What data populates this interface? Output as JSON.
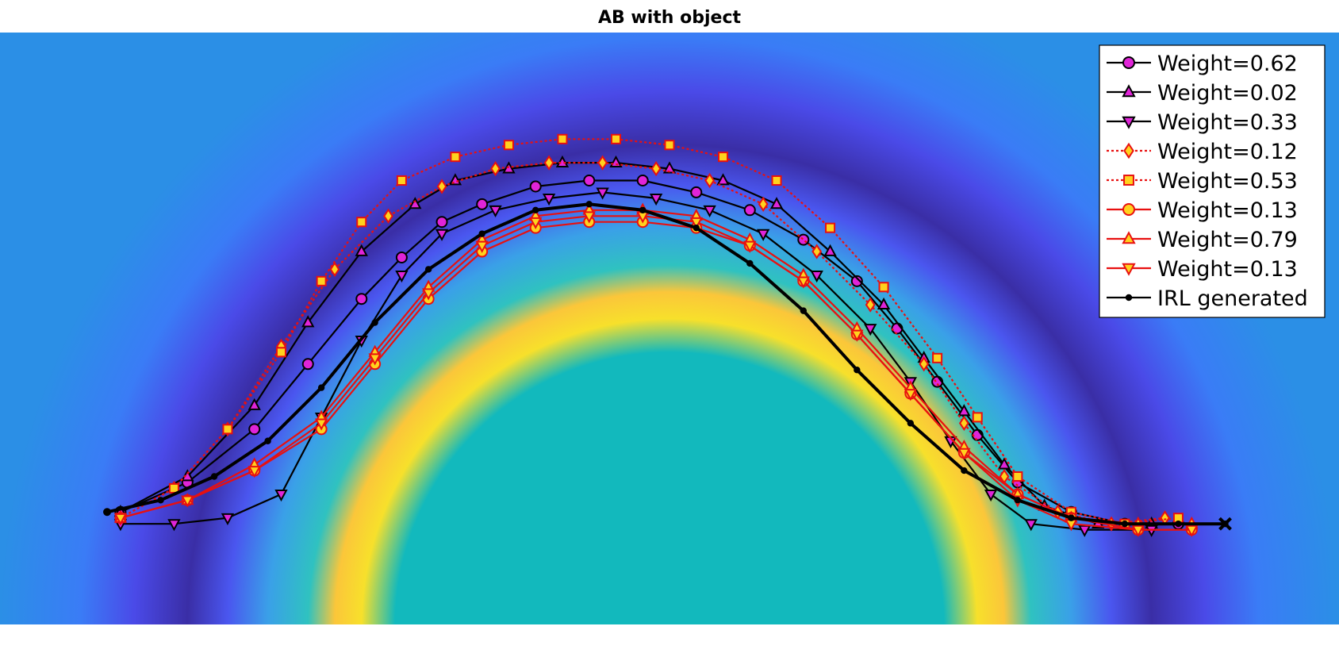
{
  "chart_data": {
    "type": "line",
    "title": "AB with object",
    "xlabel": "",
    "ylabel": "",
    "xlim": [
      0,
      1
    ],
    "ylim": [
      0,
      1
    ],
    "grid": false,
    "axes_visible": false,
    "legend_position": "top-right",
    "background": {
      "type": "heatmap",
      "description_colors": [
        "#2c6fe6",
        "#3a2fa8",
        "#12b8c0",
        "#f8e02a"
      ],
      "center": [
        0.5,
        0.0
      ],
      "radius": 0.29
    },
    "series": [
      {
        "name": "Weight=0.62",
        "marker": "circle",
        "color": "#000000",
        "marker_fill": "#e024d8",
        "line_style": "solid",
        "x": [
          0.09,
          0.14,
          0.19,
          0.23,
          0.27,
          0.3,
          0.33,
          0.36,
          0.4,
          0.44,
          0.48,
          0.52,
          0.56,
          0.6,
          0.64,
          0.67,
          0.7,
          0.73,
          0.76,
          0.8,
          0.84,
          0.88
        ],
        "y": [
          0.19,
          0.24,
          0.33,
          0.44,
          0.55,
          0.62,
          0.68,
          0.71,
          0.74,
          0.75,
          0.75,
          0.73,
          0.7,
          0.65,
          0.58,
          0.5,
          0.41,
          0.32,
          0.24,
          0.19,
          0.17,
          0.17
        ]
      },
      {
        "name": "Weight=0.02",
        "marker": "triangle-up",
        "color": "#000000",
        "marker_fill": "#e024d8",
        "line_style": "solid",
        "x": [
          0.09,
          0.14,
          0.19,
          0.23,
          0.27,
          0.31,
          0.34,
          0.38,
          0.42,
          0.46,
          0.5,
          0.54,
          0.58,
          0.62,
          0.66,
          0.69,
          0.72,
          0.75,
          0.78,
          0.82,
          0.86
        ],
        "y": [
          0.19,
          0.25,
          0.37,
          0.51,
          0.63,
          0.71,
          0.75,
          0.77,
          0.78,
          0.78,
          0.77,
          0.75,
          0.71,
          0.63,
          0.54,
          0.45,
          0.36,
          0.27,
          0.2,
          0.17,
          0.17
        ]
      },
      {
        "name": "Weight=0.33",
        "marker": "triangle-down",
        "color": "#000000",
        "marker_fill": "#e024d8",
        "line_style": "solid",
        "x": [
          0.09,
          0.13,
          0.17,
          0.21,
          0.24,
          0.27,
          0.3,
          0.33,
          0.37,
          0.41,
          0.45,
          0.49,
          0.53,
          0.57,
          0.61,
          0.65,
          0.68,
          0.71,
          0.74,
          0.77,
          0.81,
          0.86
        ],
        "y": [
          0.17,
          0.17,
          0.18,
          0.22,
          0.35,
          0.48,
          0.59,
          0.66,
          0.7,
          0.72,
          0.73,
          0.72,
          0.7,
          0.66,
          0.59,
          0.5,
          0.41,
          0.31,
          0.22,
          0.17,
          0.16,
          0.16
        ]
      },
      {
        "name": "Weight=0.12",
        "marker": "diamond",
        "color": "#e81010",
        "marker_fill": "#ffd21e",
        "line_style": "dotted",
        "x": [
          0.09,
          0.13,
          0.17,
          0.21,
          0.25,
          0.29,
          0.33,
          0.37,
          0.41,
          0.45,
          0.49,
          0.53,
          0.57,
          0.61,
          0.65,
          0.69,
          0.72,
          0.75,
          0.79,
          0.83,
          0.87
        ],
        "y": [
          0.18,
          0.23,
          0.33,
          0.47,
          0.6,
          0.69,
          0.74,
          0.77,
          0.78,
          0.78,
          0.77,
          0.75,
          0.71,
          0.63,
          0.54,
          0.44,
          0.34,
          0.25,
          0.19,
          0.17,
          0.18
        ]
      },
      {
        "name": "Weight=0.53",
        "marker": "square",
        "color": "#e81010",
        "marker_fill": "#ffd21e",
        "line_style": "dotted",
        "x": [
          0.09,
          0.13,
          0.17,
          0.21,
          0.24,
          0.27,
          0.3,
          0.34,
          0.38,
          0.42,
          0.46,
          0.5,
          0.54,
          0.58,
          0.62,
          0.66,
          0.7,
          0.73,
          0.76,
          0.8,
          0.84,
          0.88
        ],
        "y": [
          0.18,
          0.23,
          0.33,
          0.46,
          0.58,
          0.68,
          0.75,
          0.79,
          0.81,
          0.82,
          0.82,
          0.81,
          0.79,
          0.75,
          0.67,
          0.57,
          0.45,
          0.35,
          0.25,
          0.19,
          0.17,
          0.18
        ]
      },
      {
        "name": "Weight=0.13",
        "marker": "circle",
        "color": "#e81010",
        "marker_fill": "#ffd21e",
        "line_style": "solid",
        "x": [
          0.09,
          0.14,
          0.19,
          0.24,
          0.28,
          0.32,
          0.36,
          0.4,
          0.44,
          0.48,
          0.52,
          0.56,
          0.6,
          0.64,
          0.68,
          0.72,
          0.76,
          0.8,
          0.85,
          0.89
        ],
        "y": [
          0.18,
          0.21,
          0.26,
          0.33,
          0.44,
          0.55,
          0.63,
          0.67,
          0.68,
          0.68,
          0.67,
          0.64,
          0.58,
          0.49,
          0.39,
          0.29,
          0.22,
          0.18,
          0.16,
          0.16
        ]
      },
      {
        "name": "Weight=0.79",
        "marker": "triangle-up",
        "color": "#e81010",
        "marker_fill": "#ffd21e",
        "line_style": "solid",
        "x": [
          0.09,
          0.14,
          0.19,
          0.24,
          0.28,
          0.32,
          0.36,
          0.4,
          0.44,
          0.48,
          0.52,
          0.56,
          0.6,
          0.64,
          0.68,
          0.72,
          0.76,
          0.8,
          0.85,
          0.89
        ],
        "y": [
          0.18,
          0.21,
          0.27,
          0.35,
          0.46,
          0.57,
          0.65,
          0.69,
          0.7,
          0.7,
          0.69,
          0.65,
          0.59,
          0.5,
          0.4,
          0.3,
          0.22,
          0.18,
          0.17,
          0.17
        ]
      },
      {
        "name": "Weight=0.13",
        "marker": "triangle-down",
        "color": "#e81010",
        "marker_fill": "#ffd21e",
        "line_style": "solid",
        "x": [
          0.09,
          0.14,
          0.19,
          0.24,
          0.28,
          0.32,
          0.36,
          0.4,
          0.44,
          0.48,
          0.52,
          0.56,
          0.6,
          0.64,
          0.68,
          0.72,
          0.76,
          0.8,
          0.85,
          0.89
        ],
        "y": [
          0.18,
          0.21,
          0.26,
          0.34,
          0.45,
          0.56,
          0.64,
          0.68,
          0.69,
          0.69,
          0.68,
          0.64,
          0.58,
          0.49,
          0.39,
          0.29,
          0.21,
          0.17,
          0.16,
          0.16
        ]
      },
      {
        "name": "IRL generated",
        "marker": "dot",
        "color": "#000000",
        "marker_fill": "#000000",
        "line_style": "solid",
        "x": [
          0.08,
          0.12,
          0.16,
          0.2,
          0.24,
          0.28,
          0.32,
          0.36,
          0.4,
          0.44,
          0.48,
          0.52,
          0.56,
          0.6,
          0.64,
          0.68,
          0.72,
          0.76,
          0.8,
          0.84,
          0.88,
          0.915
        ],
        "y": [
          0.19,
          0.21,
          0.25,
          0.31,
          0.4,
          0.51,
          0.6,
          0.66,
          0.7,
          0.71,
          0.7,
          0.67,
          0.61,
          0.53,
          0.43,
          0.34,
          0.26,
          0.21,
          0.18,
          0.17,
          0.17,
          0.17
        ]
      }
    ],
    "start_marker": {
      "shape": "dot",
      "x": 0.08,
      "y": 0.19
    },
    "goal_marker": {
      "shape": "x",
      "x": 0.915,
      "y": 0.17
    }
  }
}
